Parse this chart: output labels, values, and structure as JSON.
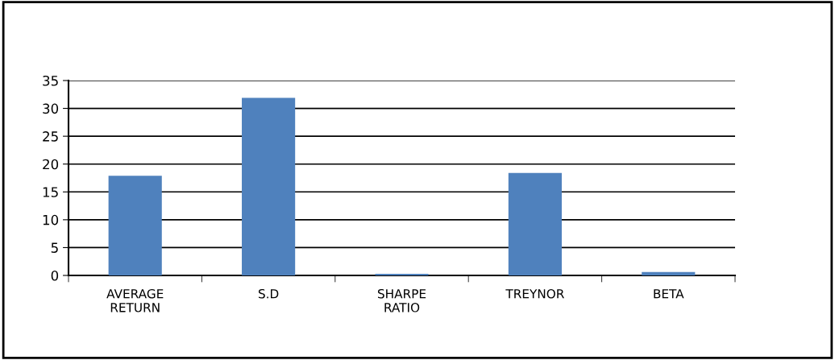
{
  "chart_data": {
    "type": "bar",
    "categories": [
      "AVERAGE\nRETURN",
      "S.D",
      "SHARPE\nRATIO",
      "TREYNOR",
      "BETA"
    ],
    "series": [
      {
        "color": "#4f81bd",
        "values": [
          17.9,
          31.9,
          0.3,
          18.4,
          0.6
        ]
      }
    ],
    "ylim": [
      0,
      35
    ],
    "yticks": [
      0,
      5,
      10,
      15,
      20,
      25,
      30,
      35
    ],
    "grid": "y"
  }
}
